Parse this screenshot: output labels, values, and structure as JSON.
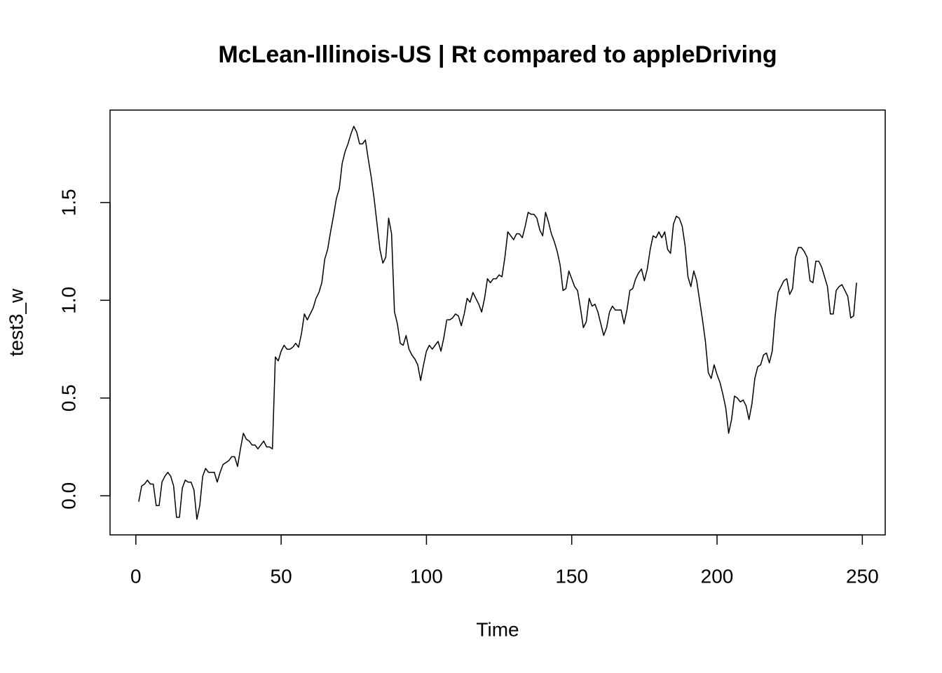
{
  "chart_data": {
    "type": "line",
    "title": "McLean-Illinois-US | Rt compared to appleDriving",
    "x_label": "Time",
    "y_label": "test3_w",
    "color": "#000000",
    "x": [
      1,
      2,
      3,
      4,
      5,
      6,
      7,
      8,
      9,
      10,
      11,
      12,
      13,
      14,
      15,
      16,
      17,
      18,
      19,
      20,
      21,
      22,
      23,
      24,
      25,
      26,
      27,
      28,
      29,
      30,
      31,
      32,
      33,
      34,
      35,
      36,
      37,
      38,
      39,
      40,
      41,
      42,
      43,
      44,
      45,
      46,
      47,
      48,
      49,
      50,
      51,
      52,
      53,
      54,
      55,
      56,
      57,
      58,
      59,
      60,
      61,
      62,
      63,
      64,
      65,
      66,
      67,
      68,
      69,
      70,
      71,
      72,
      73,
      74,
      75,
      76,
      77,
      78,
      79,
      80,
      81,
      82,
      83,
      84,
      85,
      86,
      87,
      88,
      89,
      90,
      91,
      92,
      93,
      94,
      95,
      96,
      97,
      98,
      99,
      100,
      101,
      102,
      103,
      104,
      105,
      106,
      107,
      108,
      109,
      110,
      111,
      112,
      113,
      114,
      115,
      116,
      117,
      118,
      119,
      120,
      121,
      122,
      123,
      124,
      125,
      126,
      127,
      128,
      129,
      130,
      131,
      132,
      133,
      134,
      135,
      136,
      137,
      138,
      139,
      140,
      141,
      142,
      143,
      144,
      145,
      146,
      147,
      148,
      149,
      150,
      151,
      152,
      153,
      154,
      155,
      156,
      157,
      158,
      159,
      160,
      161,
      162,
      163,
      164,
      165,
      166,
      167,
      168,
      169,
      170,
      171,
      172,
      173,
      174,
      175,
      176,
      177,
      178,
      179,
      180,
      181,
      182,
      183,
      184,
      185,
      186,
      187,
      188,
      189,
      190,
      191,
      192,
      193,
      194,
      195,
      196,
      197,
      198,
      199,
      200,
      201,
      202,
      203,
      204,
      205,
      206,
      207,
      208,
      209,
      210,
      211,
      212,
      213,
      214,
      215,
      216,
      217,
      218,
      219,
      220,
      221,
      222,
      223,
      224,
      225,
      226,
      227,
      228,
      229,
      230,
      231,
      232,
      233,
      234,
      235,
      236,
      237,
      238,
      239,
      240,
      241,
      242,
      243,
      244,
      245,
      246,
      247,
      248
    ],
    "values": [
      -0.03,
      0.05,
      0.06,
      0.08,
      0.06,
      0.06,
      -0.05,
      -0.05,
      0.07,
      0.1,
      0.12,
      0.1,
      0.05,
      -0.11,
      -0.11,
      0.04,
      0.08,
      0.07,
      0.07,
      0.03,
      -0.12,
      -0.05,
      0.1,
      0.14,
      0.12,
      0.12,
      0.12,
      0.07,
      0.12,
      0.16,
      0.17,
      0.18,
      0.2,
      0.2,
      0.15,
      0.24,
      0.32,
      0.29,
      0.28,
      0.26,
      0.26,
      0.24,
      0.26,
      0.28,
      0.25,
      0.25,
      0.24,
      0.71,
      0.69,
      0.74,
      0.77,
      0.75,
      0.75,
      0.76,
      0.78,
      0.76,
      0.83,
      0.93,
      0.9,
      0.93,
      0.96,
      1.01,
      1.04,
      1.09,
      1.21,
      1.26,
      1.35,
      1.43,
      1.52,
      1.57,
      1.7,
      1.76,
      1.8,
      1.85,
      1.89,
      1.86,
      1.8,
      1.8,
      1.82,
      1.72,
      1.63,
      1.52,
      1.39,
      1.26,
      1.19,
      1.22,
      1.42,
      1.34,
      0.94,
      0.88,
      0.78,
      0.77,
      0.82,
      0.75,
      0.72,
      0.7,
      0.67,
      0.59,
      0.67,
      0.74,
      0.77,
      0.75,
      0.77,
      0.79,
      0.74,
      0.81,
      0.9,
      0.9,
      0.91,
      0.93,
      0.92,
      0.87,
      0.93,
      1.01,
      0.99,
      1.04,
      1.01,
      0.98,
      0.94,
      1.01,
      1.11,
      1.09,
      1.11,
      1.11,
      1.13,
      1.12,
      1.22,
      1.35,
      1.33,
      1.31,
      1.34,
      1.34,
      1.32,
      1.38,
      1.45,
      1.44,
      1.44,
      1.42,
      1.36,
      1.33,
      1.45,
      1.4,
      1.34,
      1.3,
      1.25,
      1.18,
      1.05,
      1.06,
      1.15,
      1.11,
      1.07,
      1.05,
      0.96,
      0.86,
      0.89,
      1.01,
      0.97,
      0.98,
      0.94,
      0.88,
      0.82,
      0.86,
      0.94,
      0.97,
      0.95,
      0.95,
      0.95,
      0.88,
      0.95,
      1.05,
      1.06,
      1.11,
      1.14,
      1.16,
      1.1,
      1.16,
      1.26,
      1.33,
      1.32,
      1.35,
      1.32,
      1.35,
      1.26,
      1.24,
      1.39,
      1.43,
      1.42,
      1.38,
      1.28,
      1.12,
      1.07,
      1.15,
      1.1,
      1.0,
      0.9,
      0.79,
      0.63,
      0.6,
      0.67,
      0.62,
      0.58,
      0.52,
      0.45,
      0.32,
      0.39,
      0.51,
      0.5,
      0.48,
      0.49,
      0.46,
      0.39,
      0.47,
      0.6,
      0.66,
      0.67,
      0.72,
      0.73,
      0.68,
      0.74,
      0.92,
      1.04,
      1.07,
      1.1,
      1.11,
      1.03,
      1.06,
      1.22,
      1.27,
      1.27,
      1.25,
      1.22,
      1.1,
      1.09,
      1.2,
      1.2,
      1.17,
      1.12,
      1.07,
      0.93,
      0.93,
      1.05,
      1.07,
      1.08,
      1.05,
      1.02,
      0.91,
      0.92,
      1.09
    ],
    "xlim": [
      -8.88,
      257.88
    ],
    "xticks": [
      0,
      50,
      100,
      150,
      200,
      250
    ],
    "ylim": [
      -0.2,
      1.973
    ],
    "yticks": [
      {
        "value": 0,
        "label": "0.0"
      },
      0.5,
      {
        "value": 1,
        "label": "1.0"
      },
      1.5
    ]
  }
}
